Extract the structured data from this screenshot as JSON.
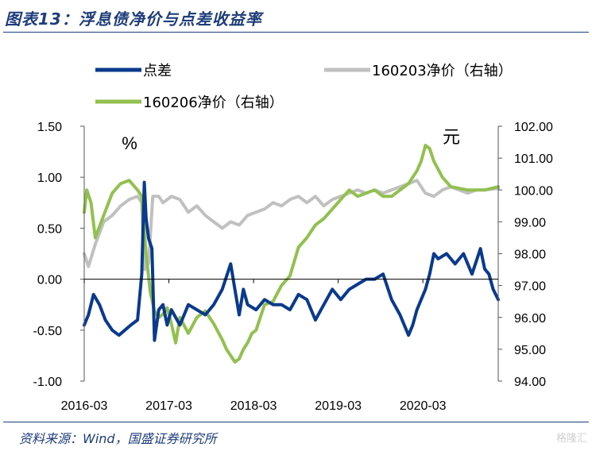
{
  "title": "图表13：浮息债净价与点差收益率",
  "source": "资料来源：Wind，国盛证券研究所",
  "watermark": "格隆汇",
  "chart_data": {
    "type": "line",
    "title": "图表13：浮息债净价与点差收益率",
    "left_unit": "%",
    "right_unit": "元",
    "y_left": {
      "ylim": [
        -1.0,
        1.5
      ],
      "ticks": [
        "1.50",
        "1.00",
        "0.50",
        "0.00",
        "-0.50",
        "-1.00"
      ],
      "tick_values": [
        1.5,
        1.0,
        0.5,
        0.0,
        -0.5,
        -1.0
      ]
    },
    "y_right": {
      "ylim": [
        94.0,
        102.0
      ],
      "ticks": [
        "102.00",
        "101.00",
        "100.00",
        "99.00",
        "98.00",
        "97.00",
        "96.00",
        "95.00",
        "94.00"
      ],
      "tick_values": [
        102,
        101,
        100,
        99,
        98,
        97,
        96,
        95,
        94
      ]
    },
    "x_ticks": [
      "2016-03",
      "2017-03",
      "2018-03",
      "2019-03",
      "2020-03"
    ],
    "x_tick_values": [
      2016.17,
      2017.17,
      2018.17,
      2019.17,
      2020.17
    ],
    "xlim": [
      2016.17,
      2021.06
    ],
    "legend": [
      "点差",
      "160203净价（右轴）",
      "160206净价（右轴）"
    ],
    "legend_placement": "top",
    "series": [
      {
        "name": "点差",
        "axis": "left",
        "color": "#0b3a8c",
        "x": [
          2016.17,
          2016.22,
          2016.28,
          2016.35,
          2016.42,
          2016.5,
          2016.58,
          2016.65,
          2016.72,
          2016.8,
          2016.85,
          2016.88,
          2016.9,
          2016.93,
          2016.97,
          2017.0,
          2017.05,
          2017.1,
          2017.15,
          2017.2,
          2017.3,
          2017.4,
          2017.5,
          2017.6,
          2017.7,
          2017.8,
          2017.9,
          2017.95,
          2018.0,
          2018.05,
          2018.1,
          2018.2,
          2018.3,
          2018.4,
          2018.5,
          2018.6,
          2018.7,
          2018.8,
          2018.9,
          2019.0,
          2019.1,
          2019.2,
          2019.3,
          2019.4,
          2019.5,
          2019.6,
          2019.7,
          2019.8,
          2019.9,
          2020.0,
          2020.05,
          2020.1,
          2020.15,
          2020.2,
          2020.25,
          2020.3,
          2020.35,
          2020.45,
          2020.55,
          2020.65,
          2020.75,
          2020.85,
          2020.9,
          2020.95,
          2021.0,
          2021.06
        ],
        "values": [
          -0.45,
          -0.35,
          -0.15,
          -0.25,
          -0.4,
          -0.5,
          -0.55,
          -0.5,
          -0.45,
          -0.4,
          0.05,
          0.95,
          0.6,
          0.4,
          0.3,
          -0.6,
          -0.3,
          -0.25,
          -0.45,
          -0.3,
          -0.45,
          -0.25,
          -0.3,
          -0.35,
          -0.25,
          -0.1,
          0.15,
          -0.1,
          -0.35,
          -0.1,
          -0.25,
          -0.3,
          -0.2,
          -0.25,
          -0.25,
          -0.3,
          -0.15,
          -0.2,
          -0.4,
          -0.25,
          -0.1,
          -0.2,
          -0.1,
          -0.05,
          0.0,
          0.0,
          0.05,
          -0.2,
          -0.35,
          -0.55,
          -0.45,
          -0.3,
          -0.2,
          -0.1,
          0.05,
          0.25,
          0.2,
          0.25,
          0.15,
          0.25,
          0.05,
          0.3,
          0.1,
          0.05,
          -0.1,
          -0.2
        ]
      },
      {
        "name": "160203净价（右轴）",
        "axis": "right",
        "color": "#c0c0c0",
        "x": [
          2016.17,
          2016.22,
          2016.3,
          2016.4,
          2016.5,
          2016.6,
          2016.7,
          2016.8,
          2016.85,
          2016.88,
          2016.93,
          2016.98,
          2017.05,
          2017.1,
          2017.2,
          2017.3,
          2017.4,
          2017.5,
          2017.6,
          2017.7,
          2017.8,
          2017.9,
          2018.0,
          2018.1,
          2018.2,
          2018.3,
          2018.4,
          2018.5,
          2018.6,
          2018.7,
          2018.8,
          2018.9,
          2019.0,
          2019.1,
          2019.2,
          2019.3,
          2019.4,
          2019.5,
          2019.6,
          2019.7,
          2019.8,
          2019.9,
          2020.0,
          2020.1,
          2020.2,
          2020.3,
          2020.4,
          2020.5,
          2020.6,
          2020.7,
          2020.8,
          2020.9,
          2021.06
        ],
        "values": [
          98.0,
          97.6,
          98.3,
          99.0,
          99.2,
          99.5,
          99.7,
          99.8,
          99.6,
          97.5,
          97.7,
          99.8,
          99.8,
          99.6,
          99.8,
          99.7,
          99.3,
          99.5,
          99.2,
          99.0,
          98.8,
          99.0,
          98.9,
          99.2,
          99.3,
          99.4,
          99.6,
          99.5,
          99.7,
          99.8,
          99.6,
          99.8,
          99.5,
          99.7,
          99.8,
          99.9,
          100.0,
          99.9,
          100.0,
          99.9,
          100.0,
          100.1,
          100.2,
          100.3,
          99.9,
          99.8,
          100.0,
          100.1,
          100.0,
          99.9,
          100.0,
          100.0,
          100.05
        ]
      },
      {
        "name": "160206净价（右轴）",
        "axis": "right",
        "color": "#92c050",
        "x": [
          2016.17,
          2016.2,
          2016.25,
          2016.3,
          2016.4,
          2016.5,
          2016.6,
          2016.7,
          2016.8,
          2016.85,
          2016.9,
          2016.95,
          2017.0,
          2017.05,
          2017.1,
          2017.15,
          2017.2,
          2017.25,
          2017.3,
          2017.4,
          2017.5,
          2017.6,
          2017.7,
          2017.8,
          2017.85,
          2017.9,
          2017.95,
          2018.0,
          2018.05,
          2018.1,
          2018.15,
          2018.2,
          2018.3,
          2018.4,
          2018.5,
          2018.6,
          2018.7,
          2018.8,
          2018.9,
          2019.0,
          2019.1,
          2019.2,
          2019.3,
          2019.4,
          2019.5,
          2019.6,
          2019.7,
          2019.8,
          2019.9,
          2020.0,
          2020.05,
          2020.1,
          2020.15,
          2020.2,
          2020.25,
          2020.3,
          2020.4,
          2020.5,
          2020.6,
          2020.7,
          2020.8,
          2020.9,
          2021.06
        ],
        "values": [
          99.3,
          100.0,
          99.6,
          98.5,
          99.2,
          99.9,
          100.2,
          100.3,
          100.0,
          99.8,
          98.0,
          96.8,
          96.2,
          96.0,
          96.1,
          96.3,
          95.8,
          95.2,
          96.0,
          95.5,
          96.0,
          96.2,
          95.8,
          95.3,
          95.0,
          94.8,
          94.6,
          94.7,
          95.0,
          95.2,
          95.5,
          95.6,
          96.4,
          96.5,
          97.0,
          97.3,
          98.2,
          98.5,
          98.9,
          99.1,
          99.4,
          99.7,
          100.0,
          99.8,
          99.9,
          100.0,
          99.8,
          99.8,
          100.0,
          100.2,
          100.4,
          100.6,
          100.9,
          101.4,
          101.3,
          100.9,
          100.4,
          100.1,
          100.05,
          100.0,
          100.0,
          100.0,
          100.1
        ]
      }
    ]
  }
}
